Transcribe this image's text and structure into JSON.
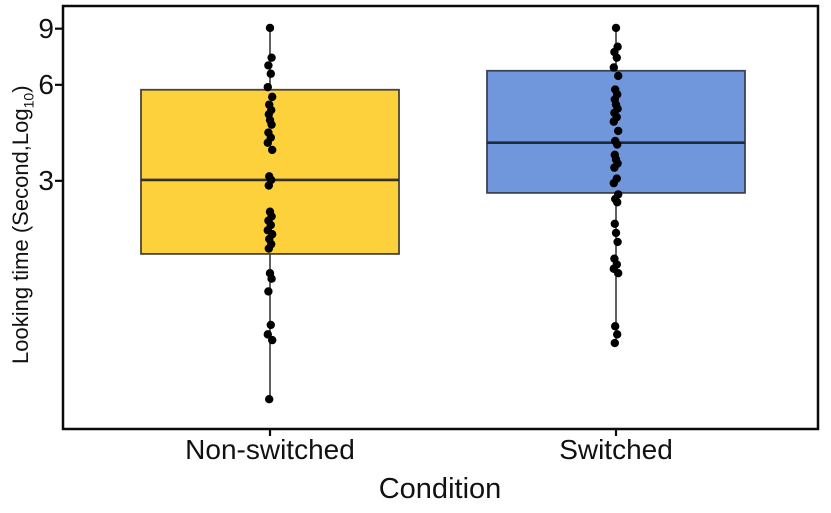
{
  "figure": {
    "background": "#ffffff"
  },
  "chart_data": {
    "type": "boxplot",
    "title": "",
    "xlabel": "Condition",
    "ylabel": "Looking time (Second,Log10)",
    "ylabel_parts": {
      "main": "Looking time (Second,Log",
      "sub": "10",
      "end": ")"
    },
    "yscale": "log",
    "ylim": [
      0.5,
      10.6
    ],
    "yticks": [
      9,
      6,
      3
    ],
    "grid": false,
    "legend": "none",
    "categories": [
      "Non-switched",
      "Switched"
    ],
    "point_color": "#000000",
    "axis_color": "#0a0a0a",
    "text_color": "#111111",
    "series": [
      {
        "name": "Non-switched",
        "fill_color": "#FCD13C",
        "stroke_color": "#4a4436",
        "median_color": "#33301f",
        "stats": {
          "whisker_low": 0.62,
          "q1": 1.77,
          "median": 3.02,
          "q3": 5.79,
          "whisker_high": 9.05
        },
        "points": [
          9.05,
          7.3,
          6.9,
          6.5,
          5.9,
          5.5,
          5.2,
          5.0,
          4.85,
          4.65,
          4.5,
          4.25,
          4.1,
          3.95,
          3.75,
          3.1,
          3.02,
          2.9,
          2.4,
          2.32,
          2.25,
          2.18,
          2.1,
          2.04,
          1.97,
          1.9,
          1.84,
          1.54,
          1.48,
          1.35,
          1.06,
          0.99,
          0.95,
          0.62
        ]
      },
      {
        "name": "Switched",
        "fill_color": "#7097DC",
        "stroke_color": "#3c4352",
        "median_color": "#22293a",
        "stats": {
          "whisker_low": 0.93,
          "q1": 2.75,
          "median": 3.95,
          "q3": 6.64,
          "whisker_high": 9.05
        },
        "points": [
          9.05,
          7.9,
          7.6,
          7.3,
          6.8,
          6.4,
          5.8,
          5.6,
          5.4,
          5.2,
          5.05,
          4.9,
          4.75,
          4.6,
          4.3,
          4.0,
          3.9,
          3.62,
          3.5,
          3.4,
          3.3,
          3.05,
          2.95,
          2.72,
          2.63,
          2.57,
          2.2,
          2.06,
          1.93,
          1.71,
          1.64,
          1.59,
          1.54,
          1.05,
          0.99,
          0.93
        ]
      }
    ]
  }
}
